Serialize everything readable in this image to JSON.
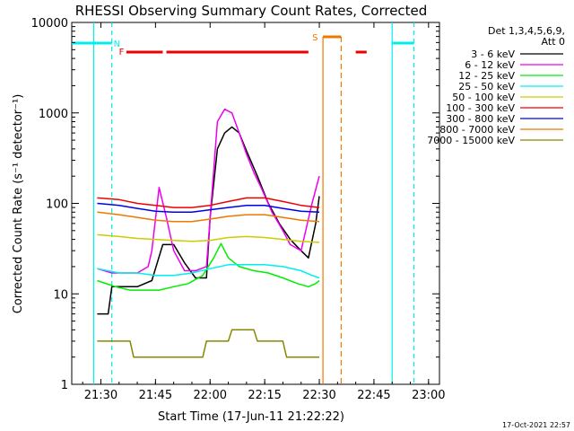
{
  "chart_data": {
    "type": "line",
    "title": "RHESSI Observing Summary Count Rates, Corrected",
    "xlabel": "Start Time (17-Jun-11 21:22:22)",
    "ylabel": "Corrected Count Rate (s⁻¹ detector⁻¹)",
    "y_scale": "log",
    "ylim": [
      1,
      10000
    ],
    "xlim": [
      "21:22",
      "23:03"
    ],
    "x_ticks": [
      "21:30",
      "21:45",
      "22:00",
      "22:15",
      "22:30",
      "22:45",
      "23:00"
    ],
    "y_ticks": [
      "1",
      "10",
      "100",
      "1000",
      "10000"
    ],
    "legend_header": [
      "Det 1,3,4,5,6,9,",
      "Att 0"
    ],
    "legend_position": "right",
    "timestamp": "17-Oct-2021 22:57",
    "series": [
      {
        "name": "3 - 6 keV",
        "color": "#000000",
        "x": [
          "21:29",
          "21:32",
          "21:33",
          "21:36",
          "21:40",
          "21:44",
          "21:47",
          "21:50",
          "21:53",
          "21:56",
          "21:59",
          "22:00",
          "22:02",
          "22:04",
          "22:06",
          "22:08",
          "22:10",
          "22:13",
          "22:16",
          "22:19",
          "22:22",
          "22:25",
          "22:27",
          "22:29",
          "22:30"
        ],
        "y": [
          6,
          6,
          12,
          12,
          12,
          14,
          35,
          35,
          22,
          15,
          15,
          70,
          400,
          600,
          700,
          600,
          380,
          200,
          100,
          60,
          40,
          30,
          25,
          60,
          120
        ]
      },
      {
        "name": "6 - 12 keV",
        "color": "#ee00ee",
        "x": [
          "21:29",
          "21:33",
          "21:36",
          "21:40",
          "21:43",
          "21:44",
          "21:46",
          "21:48",
          "21:50",
          "21:53",
          "21:56",
          "21:59",
          "22:00",
          "22:02",
          "22:04",
          "22:06",
          "22:08",
          "22:10",
          "22:12",
          "22:14",
          "22:17",
          "22:20",
          "22:22",
          "22:25",
          "22:28",
          "22:30"
        ],
        "y": [
          19,
          17,
          17,
          17,
          20,
          30,
          150,
          70,
          30,
          18,
          18,
          20,
          70,
          800,
          1100,
          1000,
          600,
          350,
          220,
          150,
          80,
          50,
          35,
          30,
          100,
          200
        ]
      },
      {
        "name": "12 - 25 keV",
        "color": "#00ee00",
        "x": [
          "21:29",
          "21:34",
          "21:38",
          "21:42",
          "21:46",
          "21:50",
          "21:54",
          "21:58",
          "22:01",
          "22:03",
          "22:05",
          "22:08",
          "22:12",
          "22:16",
          "22:20",
          "22:24",
          "22:27",
          "22:29",
          "22:30"
        ],
        "y": [
          14,
          12,
          11,
          11,
          11,
          12,
          13,
          16,
          25,
          36,
          25,
          20,
          18,
          17,
          15,
          13,
          12,
          13,
          14
        ]
      },
      {
        "name": "25 - 50 keV",
        "color": "#00eeee",
        "x": [
          "21:29",
          "21:35",
          "21:40",
          "21:45",
          "21:50",
          "21:55",
          "22:00",
          "22:05",
          "22:10",
          "22:15",
          "22:20",
          "22:25",
          "22:28",
          "22:30"
        ],
        "y": [
          19,
          17,
          17,
          16,
          16,
          17,
          19,
          21,
          21,
          21,
          20,
          18,
          16,
          15
        ]
      },
      {
        "name": "50 - 100 keV",
        "color": "#cccc00",
        "x": [
          "21:29",
          "21:35",
          "21:40",
          "21:45",
          "21:50",
          "21:55",
          "22:00",
          "22:05",
          "22:10",
          "22:15",
          "22:20",
          "22:25",
          "22:30"
        ],
        "y": [
          45,
          43,
          41,
          40,
          39,
          38,
          39,
          42,
          43,
          42,
          40,
          38,
          37
        ]
      },
      {
        "name": "100 - 300 keV",
        "color": "#ee0000",
        "x": [
          "21:29",
          "21:35",
          "21:40",
          "21:45",
          "21:50",
          "21:55",
          "22:00",
          "22:05",
          "22:10",
          "22:15",
          "22:20",
          "22:25",
          "22:30"
        ],
        "y": [
          115,
          110,
          100,
          95,
          90,
          90,
          95,
          105,
          115,
          115,
          105,
          95,
          90
        ]
      },
      {
        "name": "300 - 800 keV",
        "color": "#0000ee",
        "x": [
          "21:29",
          "21:35",
          "21:40",
          "21:45",
          "21:50",
          "21:55",
          "22:00",
          "22:05",
          "22:10",
          "22:15",
          "22:20",
          "22:25",
          "22:30"
        ],
        "y": [
          100,
          95,
          88,
          82,
          80,
          80,
          85,
          90,
          95,
          95,
          88,
          82,
          80
        ]
      },
      {
        "name": "800 - 7000 keV",
        "color": "#ee7700",
        "x": [
          "21:29",
          "21:35",
          "21:40",
          "21:45",
          "21:50",
          "21:55",
          "22:00",
          "22:05",
          "22:10",
          "22:15",
          "22:20",
          "22:25",
          "22:30"
        ],
        "y": [
          80,
          75,
          70,
          65,
          63,
          63,
          67,
          72,
          75,
          75,
          70,
          65,
          63
        ]
      },
      {
        "name": "7000 - 15000 keV",
        "color": "#888800",
        "x": [
          "21:29",
          "21:38",
          "21:39",
          "21:58",
          "21:59",
          "22:05",
          "22:06",
          "22:12",
          "22:13",
          "22:20",
          "22:21",
          "22:30"
        ],
        "y": [
          3,
          3,
          2,
          2,
          3,
          3,
          4,
          4,
          3,
          3,
          2,
          2
        ]
      }
    ],
    "flags": [
      {
        "label": "N",
        "color": "#00eeee"
      },
      {
        "label": "F",
        "color": "#ee0000"
      },
      {
        "label": "S",
        "color": "#ee7700"
      }
    ]
  }
}
